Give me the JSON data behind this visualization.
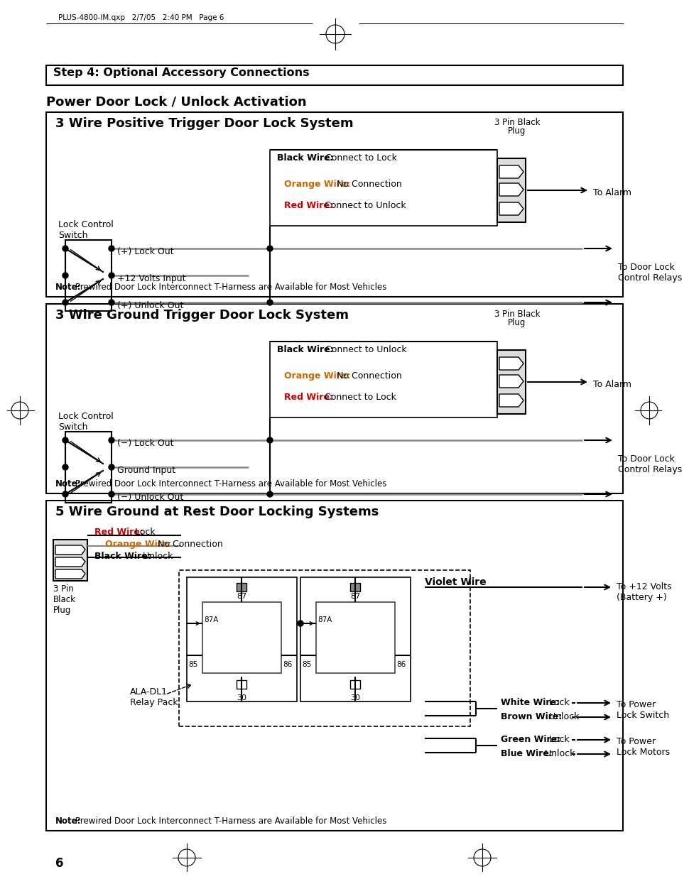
{
  "bg_color": "#ffffff",
  "page_header": "PLUS-4800-IM.qxp   2/7/05   2:40 PM   Page 6",
  "step_title": "Step 4: Optional Accessory Connections",
  "section_title": "Power Door Lock / Unlock Activation",
  "page_number": "6",
  "panel1": {
    "title": "3 Wire Positive Trigger Door Lock System",
    "plug_label": "3 Pin Black\nPlug",
    "wires": [
      {
        "bold": "Black Wire:",
        "normal": " Connect to Lock"
      },
      {
        "bold": "Orange Wire:",
        "normal": " No Connection"
      },
      {
        "bold": "Red Wire:",
        "normal": " Connect to Unlock"
      }
    ],
    "switch_lines": [
      "(+) Lock Out",
      "+12 Volts Input",
      "(+) Unlock Out"
    ],
    "switch_text": "Lock Control\nSwitch",
    "to_alarm": "To Alarm",
    "to_relays": "To Door Lock\nControl Relays",
    "note": "Prewired Door Lock Interconnect T-Harness are Available for Most Vehicles"
  },
  "panel2": {
    "title": "3 Wire Ground Trigger Door Lock System",
    "plug_label": "3 Pin Black\nPlug",
    "wires": [
      {
        "bold": "Black Wire:",
        "normal": " Connect to Unlock"
      },
      {
        "bold": "Orange Wire:",
        "normal": " No Connection"
      },
      {
        "bold": "Red Wire:",
        "normal": " Connect to Lock"
      }
    ],
    "switch_lines": [
      "−) Lock Out",
      "Ground Input",
      "(−) Unlock Out"
    ],
    "switch_text": "Lock Control\nSwitch",
    "to_alarm": "To Alarm",
    "to_relays": "To Door Lock\nControl Relays",
    "note": "Prewired Door Lock Interconnect T-Harness are Available for Most Vehicles"
  },
  "panel3": {
    "title": "5 Wire Ground at Rest Door Locking Systems",
    "plug_label": "3 Pin\nBlack\nPlug",
    "relay_label": "ALA-DL1\nRelay Pack",
    "wires_left": [
      {
        "bold": "Red Wire:",
        "normal": " Lock"
      },
      {
        "bold": "Orange Wire:",
        "normal": " No Connection"
      },
      {
        "bold": "Black Wire:",
        "normal": " Unlock"
      }
    ],
    "violet_wire": "Violet Wire",
    "right_top_label": "To +12 Volts\n(Battery +)",
    "wires_right": [
      {
        "bold": "White Wire:",
        "normal": " Lock"
      },
      {
        "bold": "Brown Wire:",
        "normal": " Unlock"
      },
      {
        "bold": "Green Wire:",
        "normal": " Lock"
      },
      {
        "bold": "Blue Wire:",
        "normal": " Unlock"
      }
    ],
    "right_mid_label": "To Power\nLock Switch",
    "right_bot_label": "To Power\nLock Motors",
    "note": "Prewired Door Lock Interconnect T-Harness are Available for Most Vehicles"
  }
}
